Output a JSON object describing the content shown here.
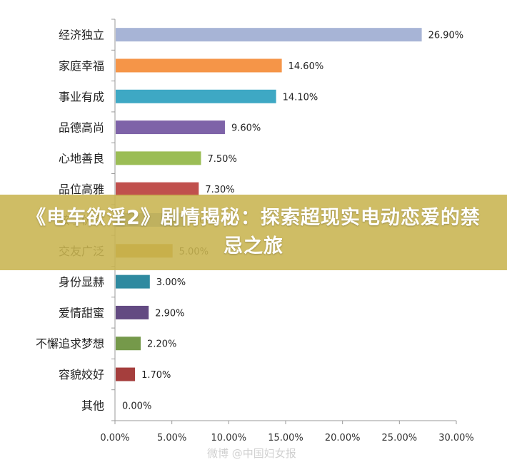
{
  "chart_data": {
    "type": "bar",
    "orientation": "horizontal",
    "categories": [
      "经济独立",
      "家庭幸福",
      "事业有成",
      "品德高尚",
      "心地善良",
      "品位高雅",
      "孩子优秀",
      "交友广泛",
      "身份显赫",
      "爱情甜蜜",
      "不懈追求梦想",
      "容貌姣好",
      "其他"
    ],
    "values": [
      26.9,
      14.6,
      14.1,
      9.6,
      7.5,
      7.3,
      6.0,
      5.0,
      3.0,
      2.9,
      2.2,
      1.7,
      0.0
    ],
    "value_labels": [
      "26.90%",
      "14.60%",
      "14.10%",
      "9.60%",
      "7.50%",
      "7.30%",
      "6.00%",
      "5.00%",
      "3.00%",
      "2.90%",
      "2.20%",
      "1.70%",
      "0.00%"
    ],
    "colors": [
      "#a7b4d6",
      "#f59548",
      "#3ea8c4",
      "#7e63a8",
      "#9bbd55",
      "#c0504d",
      "#7f9ccf",
      "#c7962e",
      "#2f8aa0",
      "#634a82",
      "#75994a",
      "#a53e3d",
      "#6f8fc1"
    ],
    "x_ticks": [
      "0.00%",
      "5.00%",
      "10.00%",
      "15.00%",
      "20.00%",
      "25.00%",
      "30.00%"
    ],
    "xlim": [
      0,
      30
    ],
    "grid": false,
    "legend": "none"
  },
  "overlay": {
    "title": "《电车欲淫2》剧情揭秘：探索超现实电动恋爱的禁忌之旅"
  },
  "watermark": {
    "text": "微博 @中国妇女报"
  }
}
